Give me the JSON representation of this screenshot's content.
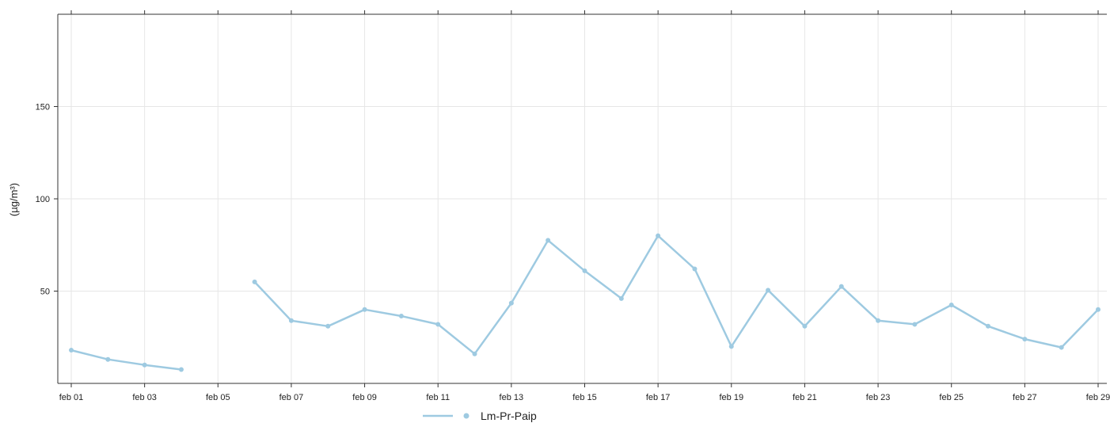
{
  "chart_data": {
    "type": "line",
    "ylabel": "(µg/m³)",
    "ylim": [
      0,
      200
    ],
    "yticks": [
      50,
      100,
      150
    ],
    "xrange": [
      "2024-02-01",
      "2024-02-29"
    ],
    "xticks": [
      {
        "date": "2024-02-01",
        "label": "feb 01"
      },
      {
        "date": "2024-02-03",
        "label": "feb 03"
      },
      {
        "date": "2024-02-05",
        "label": "feb 05"
      },
      {
        "date": "2024-02-07",
        "label": "feb 07"
      },
      {
        "date": "2024-02-09",
        "label": "feb 09"
      },
      {
        "date": "2024-02-11",
        "label": "feb 11"
      },
      {
        "date": "2024-02-13",
        "label": "feb 13"
      },
      {
        "date": "2024-02-15",
        "label": "feb 15"
      },
      {
        "date": "2024-02-17",
        "label": "feb 17"
      },
      {
        "date": "2024-02-19",
        "label": "feb 19"
      },
      {
        "date": "2024-02-21",
        "label": "feb 21"
      },
      {
        "date": "2024-02-23",
        "label": "feb 23"
      },
      {
        "date": "2024-02-25",
        "label": "feb 25"
      },
      {
        "date": "2024-02-27",
        "label": "feb 27"
      },
      {
        "date": "2024-02-29",
        "label": "feb 29"
      }
    ],
    "grid": true,
    "legend_position": "bottom",
    "series": [
      {
        "name": "Lm-Pr-Paip",
        "color": "#9ecae1",
        "points": [
          {
            "x": "2024-02-01",
            "y": 18
          },
          {
            "x": "2024-02-02",
            "y": 13
          },
          {
            "x": "2024-02-03",
            "y": 10
          },
          {
            "x": "2024-02-04",
            "y": 7.5
          },
          {
            "x": "2024-02-05",
            "y": null
          },
          {
            "x": "2024-02-06",
            "y": 55
          },
          {
            "x": "2024-02-07",
            "y": 34
          },
          {
            "x": "2024-02-08",
            "y": 31
          },
          {
            "x": "2024-02-09",
            "y": 40
          },
          {
            "x": "2024-02-10",
            "y": 36.5
          },
          {
            "x": "2024-02-11",
            "y": 32
          },
          {
            "x": "2024-02-12",
            "y": 16
          },
          {
            "x": "2024-02-13",
            "y": 43.5
          },
          {
            "x": "2024-02-14",
            "y": 77.5
          },
          {
            "x": "2024-02-15",
            "y": 61
          },
          {
            "x": "2024-02-16",
            "y": 46
          },
          {
            "x": "2024-02-17",
            "y": 80
          },
          {
            "x": "2024-02-18",
            "y": 62
          },
          {
            "x": "2024-02-19",
            "y": 20
          },
          {
            "x": "2024-02-20",
            "y": 50.5
          },
          {
            "x": "2024-02-21",
            "y": 31
          },
          {
            "x": "2024-02-22",
            "y": 52.5
          },
          {
            "x": "2024-02-23",
            "y": 34
          },
          {
            "x": "2024-02-24",
            "y": 32
          },
          {
            "x": "2024-02-25",
            "y": 42.5
          },
          {
            "x": "2024-02-26",
            "y": 31
          },
          {
            "x": "2024-02-27",
            "y": 24
          },
          {
            "x": "2024-02-28",
            "y": 19.5
          },
          {
            "x": "2024-02-29",
            "y": 40
          }
        ]
      }
    ]
  }
}
